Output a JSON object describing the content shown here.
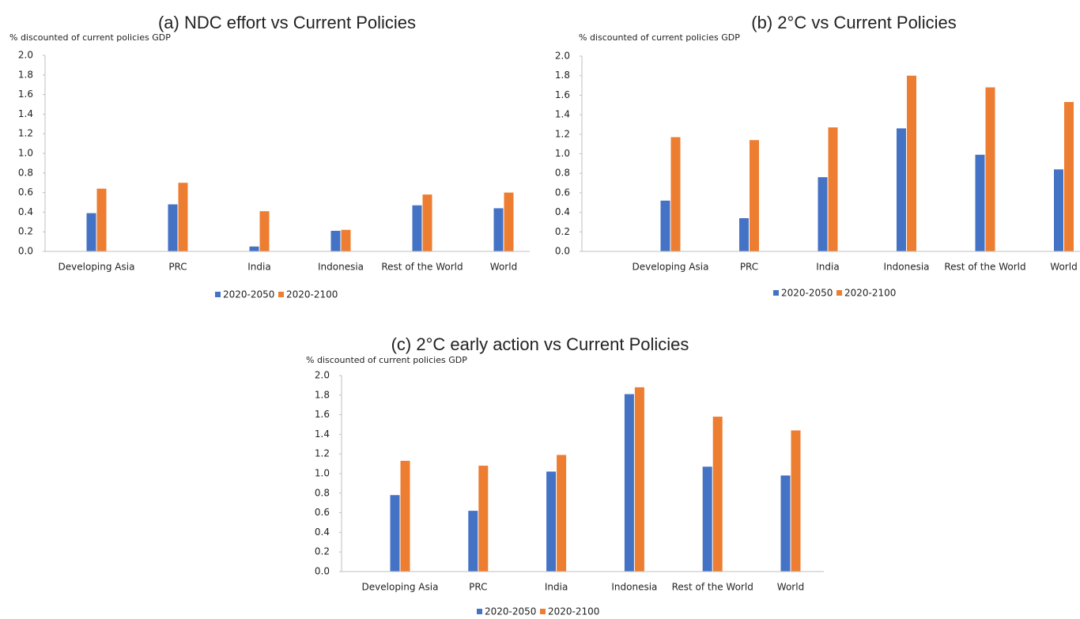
{
  "chart_data": [
    {
      "type": "bar",
      "title": "(a)  NDC effort vs Current Policies",
      "y_label": "% discounted of current policies GDP",
      "categories": [
        "Developing Asia",
        "PRC",
        "India",
        "Indonesia",
        "Rest of the World",
        "World"
      ],
      "series": [
        {
          "name": "2020-2050",
          "color": "#4472c4",
          "values": [
            0.39,
            0.48,
            0.05,
            0.21,
            0.47,
            0.44
          ]
        },
        {
          "name": "2020-2100",
          "color": "#ed7d31",
          "values": [
            0.64,
            0.7,
            0.41,
            0.22,
            0.58,
            0.6
          ]
        }
      ],
      "ylim": [
        0,
        2
      ],
      "yticks": [
        {
          "value": 0,
          "label": "0.0"
        },
        0.2,
        0.4,
        0.6,
        0.8,
        {
          "value": 1,
          "label": "1.0"
        },
        1.2,
        1.4,
        1.6,
        1.8,
        {
          "value": 2,
          "label": "2.0"
        }
      ],
      "legend": "bottom"
    },
    {
      "type": "bar",
      "title": "(b)  2°C vs Current Policies",
      "y_label": "% discounted of current policies GDP",
      "categories": [
        "Developing Asia",
        "PRC",
        "India",
        "Indonesia",
        "Rest of the World",
        "World"
      ],
      "series": [
        {
          "name": "2020-2050",
          "color": "#4472c4",
          "values": [
            0.52,
            0.34,
            0.76,
            1.26,
            0.99,
            0.84
          ]
        },
        {
          "name": "2020-2100",
          "color": "#ed7d31",
          "values": [
            1.17,
            1.14,
            1.27,
            1.8,
            1.68,
            1.53
          ]
        }
      ],
      "ylim": [
        0,
        2
      ],
      "yticks": [
        {
          "value": 0,
          "label": "0.0"
        },
        0.2,
        0.4,
        0.6,
        0.8,
        {
          "value": 1,
          "label": "1.0"
        },
        1.2,
        1.4,
        1.6,
        1.8,
        {
          "value": 2,
          "label": "2.0"
        }
      ],
      "legend": "bottom"
    },
    {
      "type": "bar",
      "title": "(c)  2°C early action vs Current Policies",
      "y_label": "% discounted of current policies GDP",
      "categories": [
        "Developing Asia",
        "PRC",
        "India",
        "Indonesia",
        "Rest of the World",
        "World"
      ],
      "series": [
        {
          "name": "2020-2050",
          "color": "#4472c4",
          "values": [
            0.78,
            0.62,
            1.02,
            1.81,
            1.07,
            0.98
          ]
        },
        {
          "name": "2020-2100",
          "color": "#ed7d31",
          "values": [
            1.13,
            1.08,
            1.19,
            1.88,
            1.58,
            1.44
          ]
        }
      ],
      "ylim": [
        0,
        2
      ],
      "yticks": [
        {
          "value": 0,
          "label": "0.0"
        },
        0.2,
        0.4,
        0.6,
        0.8,
        {
          "value": 1,
          "label": "1.0"
        },
        1.2,
        1.4,
        1.6,
        1.8,
        {
          "value": 2,
          "label": "2.0"
        }
      ],
      "legend": "bottom"
    }
  ]
}
